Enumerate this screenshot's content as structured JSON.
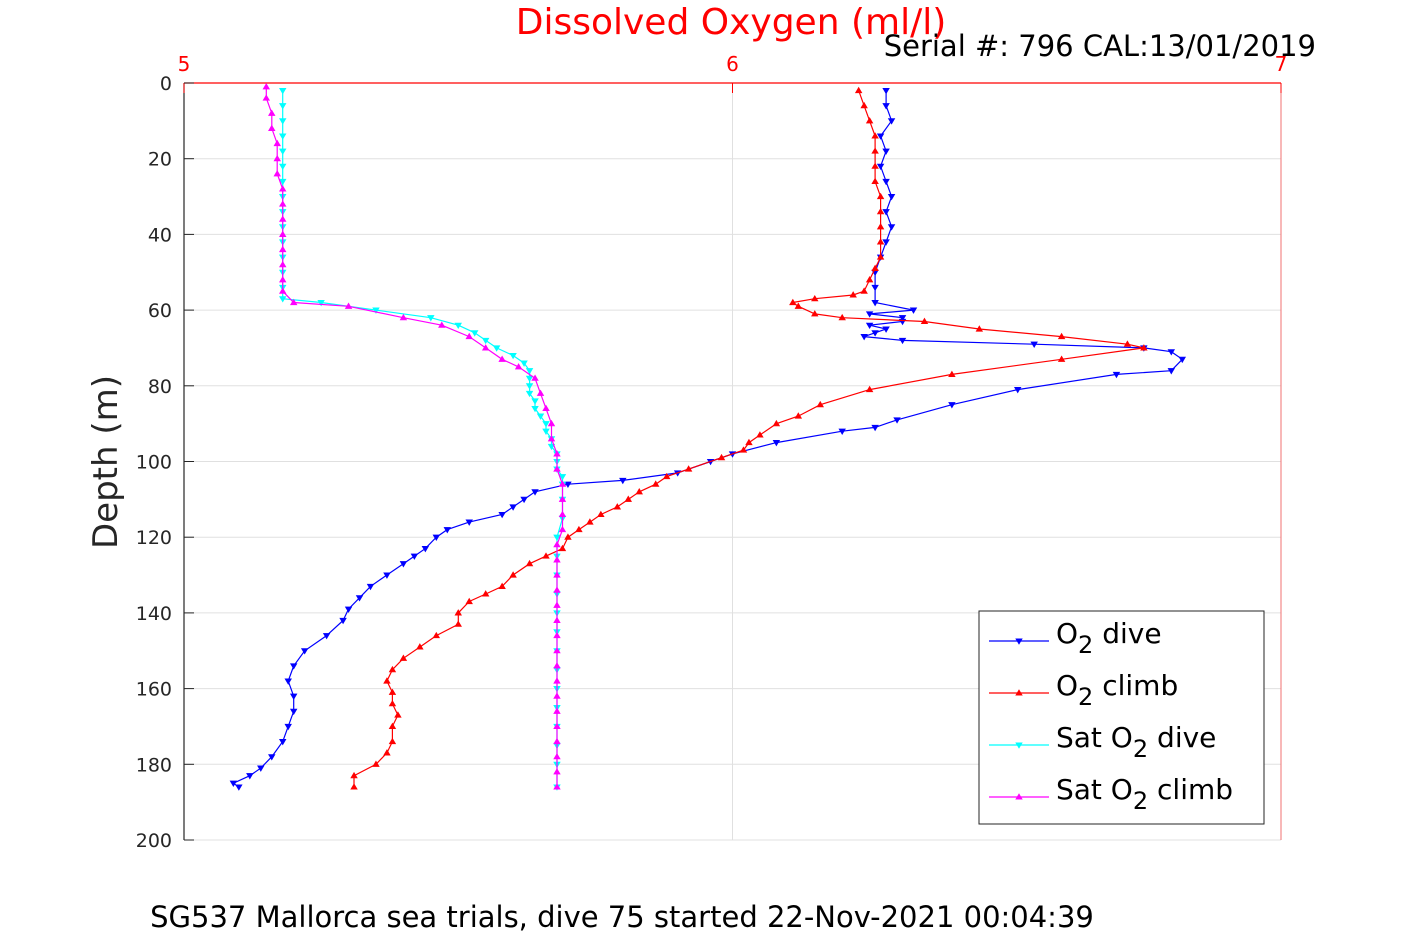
{
  "chart_data": {
    "type": "line",
    "title": "Dissolved Oxygen (ml/l)",
    "subtitle": "Serial #: 796  CAL:13/01/2019",
    "caption": "SG537 Mallorca sea trials, dive 75 started 22-Nov-2021 00:04:39",
    "xlabel": "",
    "ylabel": "Depth (m)",
    "xlim": [
      5,
      7
    ],
    "ylim": [
      0,
      200
    ],
    "y_reversed": true,
    "x_axis_position": "top",
    "xticks": [
      "5",
      "6",
      "7"
    ],
    "yticks": [
      "0",
      "20",
      "40",
      "60",
      "80",
      "100",
      "120",
      "140",
      "160",
      "180",
      "200"
    ],
    "grid": true,
    "legend_position": "bottom-right",
    "colors": {
      "title": "#ff0000",
      "x_axis": "#ff0000",
      "o2_dive": "#0000ff",
      "o2_climb": "#ff0000",
      "sat_dive": "#00ffff",
      "sat_climb": "#ff00ff"
    },
    "series": [
      {
        "name_main": "O",
        "name_sub": "2",
        "name_rest": " dive",
        "color": "#0000ff",
        "marker": "down-triangle",
        "points": [
          [
            6.28,
            2
          ],
          [
            6.28,
            6
          ],
          [
            6.29,
            10
          ],
          [
            6.27,
            14
          ],
          [
            6.28,
            18
          ],
          [
            6.27,
            22
          ],
          [
            6.28,
            26
          ],
          [
            6.29,
            30
          ],
          [
            6.28,
            34
          ],
          [
            6.29,
            38
          ],
          [
            6.28,
            42
          ],
          [
            6.27,
            46
          ],
          [
            6.26,
            50
          ],
          [
            6.26,
            54
          ],
          [
            6.26,
            58
          ],
          [
            6.33,
            60
          ],
          [
            6.25,
            61
          ],
          [
            6.31,
            62
          ],
          [
            6.31,
            63
          ],
          [
            6.25,
            64
          ],
          [
            6.28,
            65
          ],
          [
            6.26,
            66
          ],
          [
            6.24,
            67
          ],
          [
            6.31,
            68
          ],
          [
            6.55,
            69
          ],
          [
            6.75,
            70
          ],
          [
            6.8,
            71
          ],
          [
            6.82,
            73
          ],
          [
            6.8,
            76
          ],
          [
            6.7,
            77
          ],
          [
            6.52,
            81
          ],
          [
            6.4,
            85
          ],
          [
            6.3,
            89
          ],
          [
            6.26,
            91
          ],
          [
            6.2,
            92
          ],
          [
            6.08,
            95
          ],
          [
            6.0,
            98
          ],
          [
            5.96,
            100
          ],
          [
            5.9,
            103
          ],
          [
            5.8,
            105
          ],
          [
            5.7,
            106
          ],
          [
            5.64,
            108
          ],
          [
            5.62,
            110
          ],
          [
            5.6,
            112
          ],
          [
            5.58,
            114
          ],
          [
            5.52,
            116
          ],
          [
            5.48,
            118
          ],
          [
            5.46,
            120
          ],
          [
            5.44,
            123
          ],
          [
            5.42,
            125
          ],
          [
            5.4,
            127
          ],
          [
            5.37,
            130
          ],
          [
            5.34,
            133
          ],
          [
            5.32,
            136
          ],
          [
            5.3,
            139
          ],
          [
            5.29,
            142
          ],
          [
            5.26,
            146
          ],
          [
            5.22,
            150
          ],
          [
            5.2,
            154
          ],
          [
            5.19,
            158
          ],
          [
            5.2,
            162
          ],
          [
            5.2,
            166
          ],
          [
            5.19,
            170
          ],
          [
            5.18,
            174
          ],
          [
            5.16,
            178
          ],
          [
            5.14,
            181
          ],
          [
            5.12,
            183
          ],
          [
            5.09,
            185
          ],
          [
            5.1,
            186
          ]
        ]
      },
      {
        "name_main": "O",
        "name_sub": "2",
        "name_rest": " climb",
        "color": "#ff0000",
        "marker": "up-triangle",
        "points": [
          [
            5.31,
            186
          ],
          [
            5.31,
            183
          ],
          [
            5.35,
            180
          ],
          [
            5.37,
            177
          ],
          [
            5.38,
            174
          ],
          [
            5.38,
            170
          ],
          [
            5.39,
            167
          ],
          [
            5.38,
            164
          ],
          [
            5.38,
            161
          ],
          [
            5.37,
            158
          ],
          [
            5.38,
            155
          ],
          [
            5.4,
            152
          ],
          [
            5.43,
            149
          ],
          [
            5.46,
            146
          ],
          [
            5.5,
            143
          ],
          [
            5.5,
            140
          ],
          [
            5.52,
            137
          ],
          [
            5.55,
            135
          ],
          [
            5.58,
            133
          ],
          [
            5.6,
            130
          ],
          [
            5.63,
            127
          ],
          [
            5.66,
            125
          ],
          [
            5.69,
            123
          ],
          [
            5.7,
            120
          ],
          [
            5.72,
            118
          ],
          [
            5.74,
            116
          ],
          [
            5.76,
            114
          ],
          [
            5.79,
            112
          ],
          [
            5.81,
            110
          ],
          [
            5.83,
            108
          ],
          [
            5.86,
            106
          ],
          [
            5.88,
            104
          ],
          [
            5.92,
            102
          ],
          [
            5.98,
            99
          ],
          [
            6.02,
            97
          ],
          [
            6.03,
            95
          ],
          [
            6.05,
            93
          ],
          [
            6.08,
            90
          ],
          [
            6.12,
            88
          ],
          [
            6.16,
            85
          ],
          [
            6.25,
            81
          ],
          [
            6.4,
            77
          ],
          [
            6.6,
            73
          ],
          [
            6.75,
            70
          ],
          [
            6.72,
            69
          ],
          [
            6.6,
            67
          ],
          [
            6.45,
            65
          ],
          [
            6.35,
            63
          ],
          [
            6.2,
            62
          ],
          [
            6.15,
            61
          ],
          [
            6.12,
            59
          ],
          [
            6.11,
            58
          ],
          [
            6.15,
            57
          ],
          [
            6.22,
            56
          ],
          [
            6.24,
            55
          ],
          [
            6.25,
            52
          ],
          [
            6.26,
            49
          ],
          [
            6.27,
            46
          ],
          [
            6.27,
            42
          ],
          [
            6.27,
            38
          ],
          [
            6.27,
            34
          ],
          [
            6.27,
            30
          ],
          [
            6.26,
            26
          ],
          [
            6.26,
            22
          ],
          [
            6.26,
            18
          ],
          [
            6.26,
            14
          ],
          [
            6.25,
            10
          ],
          [
            6.24,
            6
          ],
          [
            6.23,
            2
          ]
        ]
      },
      {
        "name_main": "Sat O",
        "name_sub": "2",
        "name_rest": " dive",
        "color": "#00ffff",
        "marker": "down-triangle",
        "points": [
          [
            5.18,
            2
          ],
          [
            5.18,
            6
          ],
          [
            5.18,
            10
          ],
          [
            5.18,
            14
          ],
          [
            5.18,
            18
          ],
          [
            5.18,
            22
          ],
          [
            5.18,
            26
          ],
          [
            5.18,
            30
          ],
          [
            5.18,
            34
          ],
          [
            5.18,
            38
          ],
          [
            5.18,
            42
          ],
          [
            5.18,
            46
          ],
          [
            5.18,
            50
          ],
          [
            5.18,
            54
          ],
          [
            5.18,
            57
          ],
          [
            5.25,
            58
          ],
          [
            5.35,
            60
          ],
          [
            5.45,
            62
          ],
          [
            5.5,
            64
          ],
          [
            5.53,
            66
          ],
          [
            5.55,
            68
          ],
          [
            5.57,
            70
          ],
          [
            5.6,
            72
          ],
          [
            5.62,
            74
          ],
          [
            5.63,
            76
          ],
          [
            5.63,
            78
          ],
          [
            5.63,
            80
          ],
          [
            5.63,
            82
          ],
          [
            5.64,
            84
          ],
          [
            5.64,
            86
          ],
          [
            5.65,
            88
          ],
          [
            5.66,
            90
          ],
          [
            5.66,
            92
          ],
          [
            5.67,
            94
          ],
          [
            5.67,
            96
          ],
          [
            5.68,
            98
          ],
          [
            5.68,
            100
          ],
          [
            5.68,
            102
          ],
          [
            5.69,
            104
          ],
          [
            5.69,
            106
          ],
          [
            5.69,
            110
          ],
          [
            5.69,
            115
          ],
          [
            5.68,
            120
          ],
          [
            5.68,
            125
          ],
          [
            5.68,
            130
          ],
          [
            5.68,
            135
          ],
          [
            5.68,
            140
          ],
          [
            5.68,
            145
          ],
          [
            5.68,
            150
          ],
          [
            5.68,
            155
          ],
          [
            5.68,
            160
          ],
          [
            5.68,
            165
          ],
          [
            5.68,
            170
          ],
          [
            5.68,
            175
          ],
          [
            5.68,
            180
          ],
          [
            5.68,
            186
          ]
        ]
      },
      {
        "name_main": "Sat O",
        "name_sub": "2",
        "name_rest": " climb",
        "color": "#ff00ff",
        "marker": "up-triangle",
        "points": [
          [
            5.68,
            186
          ],
          [
            5.68,
            182
          ],
          [
            5.68,
            178
          ],
          [
            5.68,
            174
          ],
          [
            5.68,
            170
          ],
          [
            5.68,
            166
          ],
          [
            5.68,
            162
          ],
          [
            5.68,
            158
          ],
          [
            5.68,
            154
          ],
          [
            5.68,
            150
          ],
          [
            5.68,
            146
          ],
          [
            5.68,
            142
          ],
          [
            5.68,
            138
          ],
          [
            5.68,
            134
          ],
          [
            5.68,
            130
          ],
          [
            5.68,
            126
          ],
          [
            5.68,
            122
          ],
          [
            5.69,
            118
          ],
          [
            5.69,
            114
          ],
          [
            5.69,
            110
          ],
          [
            5.69,
            106
          ],
          [
            5.68,
            102
          ],
          [
            5.68,
            98
          ],
          [
            5.67,
            94
          ],
          [
            5.67,
            90
          ],
          [
            5.66,
            86
          ],
          [
            5.65,
            82
          ],
          [
            5.64,
            78
          ],
          [
            5.61,
            75
          ],
          [
            5.58,
            73
          ],
          [
            5.55,
            70
          ],
          [
            5.52,
            67
          ],
          [
            5.47,
            64
          ],
          [
            5.4,
            62
          ],
          [
            5.3,
            59
          ],
          [
            5.2,
            58
          ],
          [
            5.18,
            55
          ],
          [
            5.18,
            52
          ],
          [
            5.18,
            48
          ],
          [
            5.18,
            44
          ],
          [
            5.18,
            40
          ],
          [
            5.18,
            36
          ],
          [
            5.18,
            32
          ],
          [
            5.18,
            28
          ],
          [
            5.17,
            24
          ],
          [
            5.17,
            20
          ],
          [
            5.17,
            16
          ],
          [
            5.16,
            12
          ],
          [
            5.16,
            8
          ],
          [
            5.15,
            4
          ],
          [
            5.15,
            1
          ]
        ]
      }
    ]
  }
}
